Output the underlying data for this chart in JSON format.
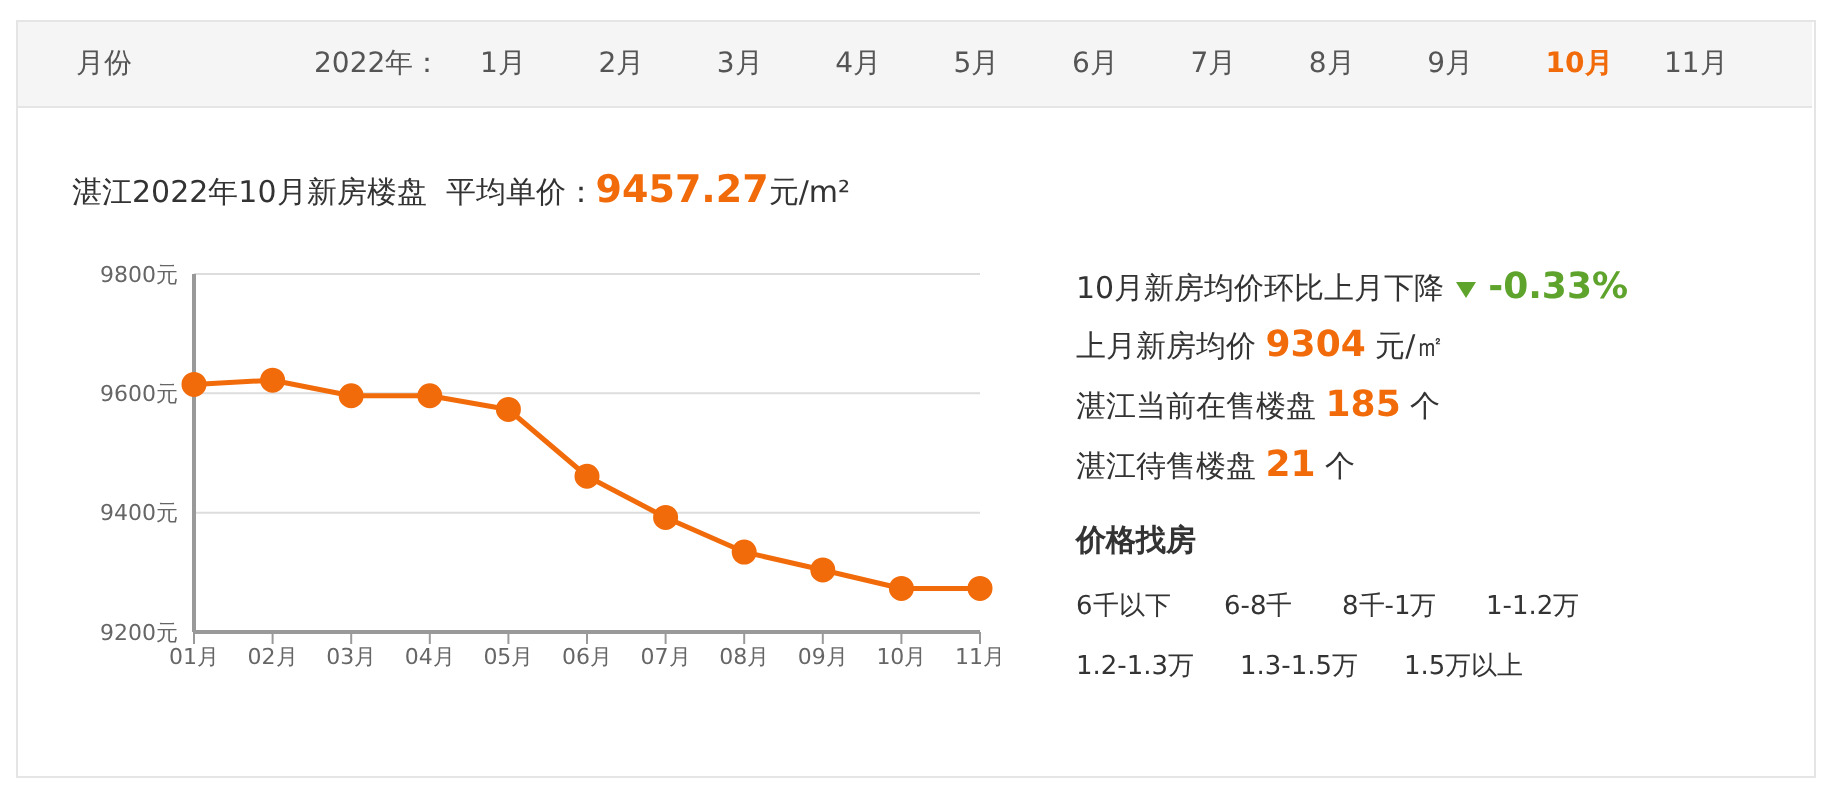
{
  "chart_data": {
    "type": "line",
    "title": "湛江2022年10月新房楼盘  平均单价：",
    "categories": [
      "01月",
      "02月",
      "03月",
      "04月",
      "05月",
      "06月",
      "07月",
      "08月",
      "09月",
      "10月",
      "11月"
    ],
    "series": [
      {
        "color": "#f26b0a",
        "values": [
          9615,
          9622,
          9596,
          9596,
          9573,
          9461,
          9392,
          9334,
          9304,
          9273,
          9273
        ]
      }
    ],
    "ylim": [
      9200,
      9800
    ],
    "yticks": [
      {
        "value": 9200,
        "label": "9200元"
      },
      {
        "value": 9400,
        "label": "9400元"
      },
      {
        "value": 9600,
        "label": "9600元"
      },
      {
        "value": 9800,
        "label": "9800元"
      }
    ],
    "grid": "y",
    "marker": "circle",
    "line_style": "solid",
    "legend": false,
    "annotations": [
      "9457.27",
      "元/m²",
      "月份",
      "2022年：",
      "1月",
      "2月",
      "3月",
      "4月",
      "5月",
      "6月",
      "7月",
      "8月",
      "9月",
      "10月",
      "11月",
      "10月新房均价环比上月下降",
      "-0.33%",
      "上月新房均价",
      "9304",
      "元/㎡",
      "湛江当前在售楼盘",
      "185",
      "个",
      "湛江待售楼盘",
      "21",
      "个",
      "价格找房",
      "6千以下",
      "6-8千",
      "8千-1万",
      "1-1.2万",
      "1.2-1.3万",
      "1.3-1.5万",
      "1.5万以上"
    ]
  }
}
